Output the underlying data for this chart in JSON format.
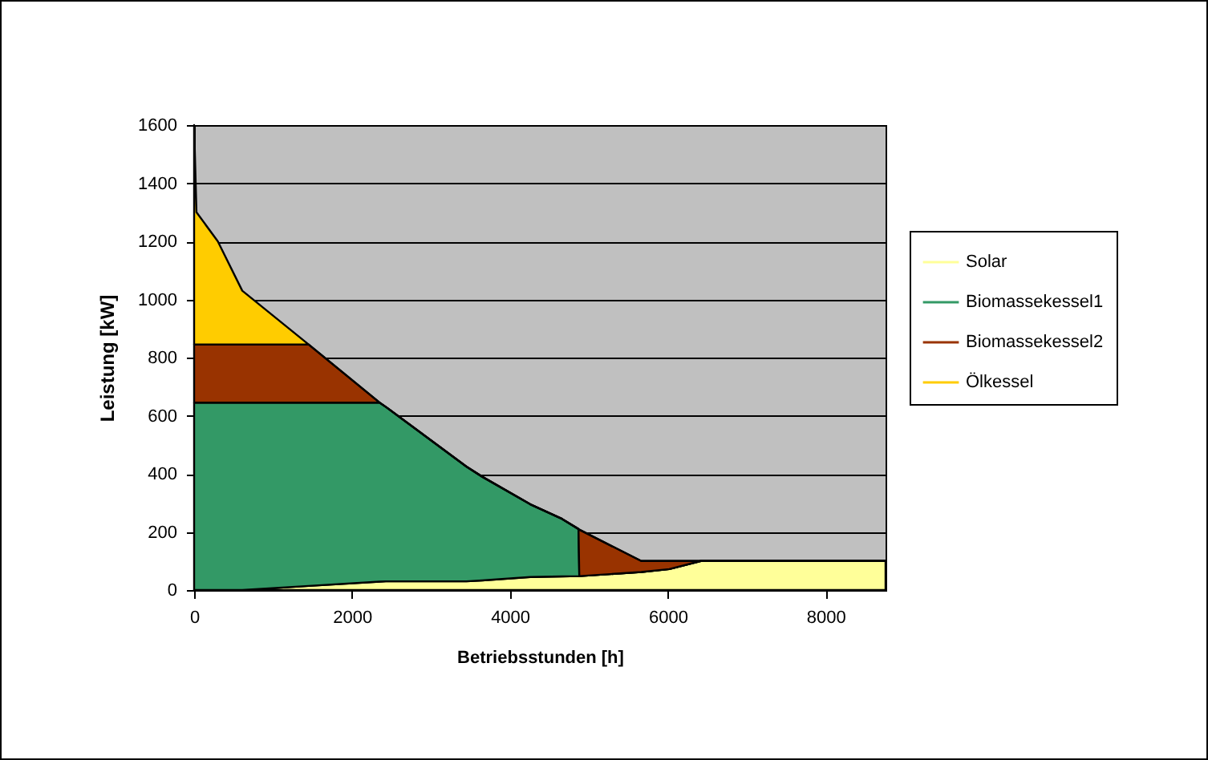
{
  "chart_data": {
    "type": "area",
    "stacked": true,
    "xlabel": "Betriebsstunden [h]",
    "ylabel": "Leistung [kW]",
    "x": [
      0,
      30,
      300,
      610,
      1450,
      2350,
      2430,
      3450,
      3650,
      4260,
      4660,
      4870,
      4880,
      5665,
      6020,
      6420,
      8760
    ],
    "series": [
      {
        "name": "Solar",
        "color": "#ffff99",
        "values": [
          0,
          0,
          0,
          0,
          14,
          29,
          30,
          30,
          33,
          45,
          47,
          48,
          48,
          62,
          72,
          100,
          100
        ]
      },
      {
        "name": "Biomassekessel1",
        "color": "#339966",
        "values": [
          645,
          645,
          645,
          645,
          631,
          616,
          600,
          395,
          357,
          250,
          198,
          162,
          0,
          0,
          0,
          0,
          0
        ]
      },
      {
        "name": "Biomassekessel2",
        "color": "#993300",
        "values": [
          200,
          200,
          200,
          200,
          200,
          0,
          0,
          0,
          0,
          0,
          0,
          0,
          160,
          38,
          28,
          0,
          0
        ]
      },
      {
        "name": "Ölkessel",
        "color": "#ffcc00",
        "values": [
          755,
          455,
          355,
          185,
          0,
          0,
          0,
          0,
          0,
          0,
          0,
          0,
          0,
          0,
          0,
          0,
          0
        ]
      }
    ],
    "xlim": [
      0,
      8760
    ],
    "xticks": [
      0,
      2000,
      4000,
      6000,
      8000
    ],
    "ylim": [
      0,
      1600
    ],
    "yticks": [
      0,
      200,
      400,
      600,
      800,
      1000,
      1200,
      1400,
      1600
    ],
    "grid": "y",
    "legend": "right"
  }
}
